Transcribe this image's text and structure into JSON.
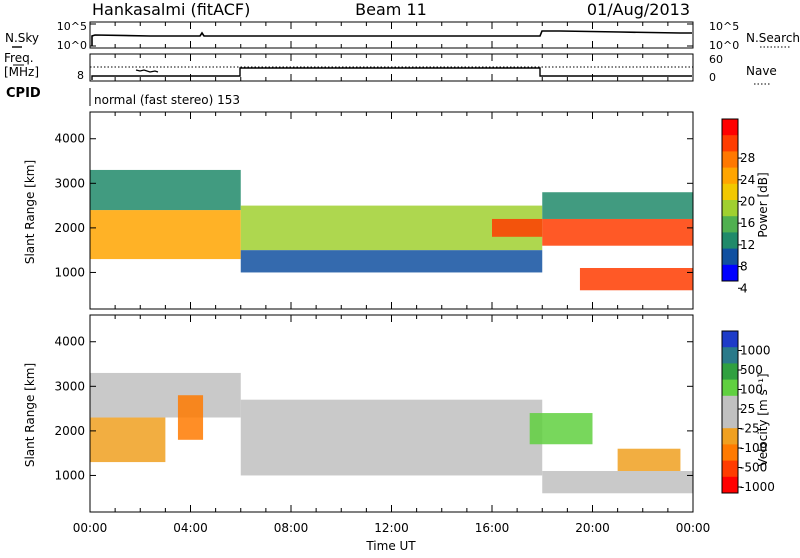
{
  "header": {
    "station": "Hankasalmi (fitACF)",
    "beam": "Beam 11",
    "date": "01/Aug/2013"
  },
  "top_panels": {
    "nsky_label": "N.Sky",
    "nsearch_label": "N.Search",
    "nsky_ticks": [
      "10^5",
      "10^0"
    ],
    "nsearch_ticks": [
      "10^5",
      "10^0"
    ],
    "freq_label_1": "Freq.",
    "freq_label_2": "[MHz]",
    "freq_ticks": [
      "8"
    ],
    "nave_label": "Nave",
    "nave_ticks": [
      "60",
      "0"
    ],
    "cpid_label": "CPID",
    "cpid_text": "normal (fast stereo) 153"
  },
  "axes": {
    "y_label": "Slant Range [km]",
    "y_ticks": [
      "4000",
      "3000",
      "2000",
      "1000"
    ],
    "x_ticks": [
      "00:00",
      "04:00",
      "08:00",
      "12:00",
      "16:00",
      "20:00",
      "00:00"
    ],
    "x_label": "Time UT"
  },
  "power_scale": {
    "label": "Power [dB]",
    "ticks": [
      "28",
      "24",
      "20",
      "16",
      "12",
      "8",
      "4"
    ],
    "colors": [
      "#ff0000",
      "#ff3c00",
      "#ff7800",
      "#ffa500",
      "#f2c800",
      "#a0d030",
      "#50b050",
      "#208a6a",
      "#1050a0",
      "#0000ff"
    ]
  },
  "velocity_scale": {
    "label": "Velocity [m s⁻¹]",
    "ticks": [
      "1000",
      "500",
      "100",
      "25",
      "-25",
      "-100",
      "-500",
      "-1000"
    ],
    "colors": [
      "#1e3cc8",
      "#2a7a8a",
      "#30a040",
      "#60d040",
      "#c0c0c0",
      "#c0c0c0",
      "#f0a020",
      "#ff7a00",
      "#ff3c00",
      "#ff0000"
    ]
  },
  "chart_data": [
    {
      "type": "heatmap",
      "title": "Power",
      "xlabel": "Time UT",
      "ylabel": "Slant Range [km]",
      "x_ticks": [
        "00:00",
        "04:00",
        "08:00",
        "12:00",
        "16:00",
        "20:00",
        "00:00"
      ],
      "ylim": [
        180,
        4600
      ],
      "colorbar_label": "Power [dB]",
      "colorbar_range": [
        0,
        30
      ],
      "bands": [
        {
          "time_range": [
            "00:00",
            "06:00"
          ],
          "range_km": [
            1300,
            2400
          ],
          "level_db": 20
        },
        {
          "time_range": [
            "00:00",
            "06:00"
          ],
          "range_km": [
            2400,
            3300
          ],
          "level_db": 8
        },
        {
          "time_range": [
            "06:00",
            "18:00"
          ],
          "range_km": [
            1500,
            2500
          ],
          "level_db": 16
        },
        {
          "time_range": [
            "06:00",
            "18:00"
          ],
          "range_km": [
            1000,
            1500
          ],
          "level_db": 6
        },
        {
          "time_range": [
            "16:00",
            "18:00"
          ],
          "range_km": [
            1800,
            2200
          ],
          "level_db": 26
        },
        {
          "time_range": [
            "18:00",
            "24:00"
          ],
          "range_km": [
            1600,
            2200
          ],
          "level_db": 26
        },
        {
          "time_range": [
            "19:30",
            "24:00"
          ],
          "range_km": [
            600,
            1100
          ],
          "level_db": 28
        },
        {
          "time_range": [
            "18:00",
            "24:00"
          ],
          "range_km": [
            2200,
            2800
          ],
          "level_db": 10
        }
      ]
    },
    {
      "type": "heatmap",
      "title": "Velocity",
      "xlabel": "Time UT",
      "ylabel": "Slant Range [km]",
      "x_ticks": [
        "00:00",
        "04:00",
        "08:00",
        "12:00",
        "16:00",
        "20:00",
        "00:00"
      ],
      "ylim": [
        180,
        4600
      ],
      "colorbar_label": "Velocity [m s-1]",
      "colorbar_range": [
        -1000,
        1000
      ],
      "bands": [
        {
          "time_range": [
            "00:00",
            "03:00"
          ],
          "range_km": [
            1300,
            2300
          ],
          "velocity_ms": -400
        },
        {
          "time_range": [
            "00:00",
            "06:00"
          ],
          "range_km": [
            2300,
            3300
          ],
          "velocity_ms": 0
        },
        {
          "time_range": [
            "03:30",
            "04:30"
          ],
          "range_km": [
            1800,
            2800
          ],
          "velocity_ms": -700
        },
        {
          "time_range": [
            "06:00",
            "18:00"
          ],
          "range_km": [
            1000,
            2700
          ],
          "velocity_ms": 0
        },
        {
          "time_range": [
            "17:30",
            "20:00"
          ],
          "range_km": [
            1700,
            2400
          ],
          "velocity_ms": 80
        },
        {
          "time_range": [
            "21:00",
            "23:30"
          ],
          "range_km": [
            1100,
            1600
          ],
          "velocity_ms": -400
        },
        {
          "time_range": [
            "18:00",
            "24:00"
          ],
          "range_km": [
            600,
            1100
          ],
          "velocity_ms": 0
        }
      ]
    }
  ]
}
